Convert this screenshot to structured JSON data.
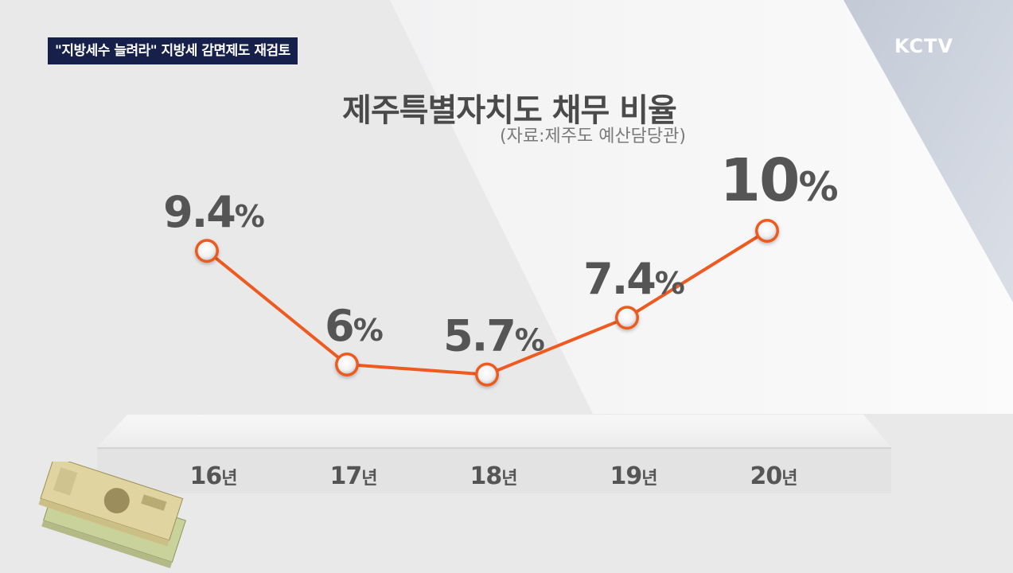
{
  "headline": "\"지방세수 늘려라\" 지방세 감면제도 재검토",
  "logo": "KCTV",
  "chart_data": {
    "type": "line",
    "title": "제주특별자치도 채무 비율",
    "source": "(자료:제주도 예산담당관)",
    "categories": [
      "16년",
      "17년",
      "18년",
      "19년",
      "20년"
    ],
    "x": [
      "16",
      "17",
      "18",
      "19",
      "20"
    ],
    "x_suffix": "년",
    "values": [
      9.4,
      6,
      5.7,
      7.4,
      10
    ],
    "value_labels": [
      "9.4",
      "6",
      "5.7",
      "7.4",
      "10"
    ],
    "value_unit": "%",
    "grid": false,
    "colors": {
      "line": "#ee5a1f",
      "marker_fill": "#ffffff",
      "value_text": "#555555",
      "tick_text": "#555555"
    }
  },
  "decorations": {
    "money_icon": "money-bundles-icon"
  }
}
